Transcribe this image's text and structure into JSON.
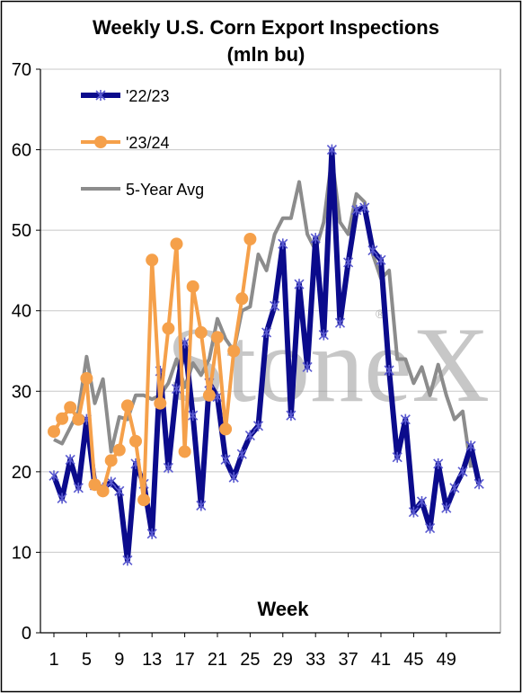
{
  "chart_data": {
    "type": "line",
    "title": "Weekly U.S. Corn Export Inspections",
    "subtitle": "(mln bu)",
    "xlabel": "Week",
    "ylabel": "",
    "xlim": [
      1,
      53
    ],
    "ylim": [
      0,
      70
    ],
    "yticks": [
      "0",
      "10",
      "20",
      "30",
      "40",
      "50",
      "60",
      "70"
    ],
    "xticks": [
      {
        "week": 1,
        "label": "1"
      },
      {
        "week": 5,
        "label": "5"
      },
      {
        "week": 9,
        "label": "9"
      },
      {
        "week": 13,
        "label": "13"
      },
      {
        "week": 17,
        "label": "17"
      },
      {
        "week": 21,
        "label": "21"
      },
      {
        "week": 25,
        "label": "25"
      },
      {
        "week": 29,
        "label": "29"
      },
      {
        "week": 33,
        "label": "33"
      },
      {
        "week": 37,
        "label": "37"
      },
      {
        "week": 41,
        "label": "41"
      },
      {
        "week": 45,
        "label": "45"
      },
      {
        "week": 49,
        "label": "49"
      }
    ],
    "grid": true,
    "legend_position": "top-left",
    "watermark": "StoneX",
    "series": [
      {
        "name": "'22/23",
        "color": "#0b0b8c",
        "marker": "asterisk",
        "weeks": [
          1,
          2,
          3,
          4,
          5,
          6,
          7,
          8,
          9,
          10,
          11,
          12,
          13,
          14,
          15,
          16,
          17,
          18,
          19,
          20,
          21,
          22,
          23,
          24,
          25,
          26,
          27,
          28,
          29,
          30,
          31,
          32,
          33,
          34,
          35,
          36,
          37,
          38,
          39,
          40,
          41,
          42,
          43,
          44,
          45,
          46,
          47,
          48,
          49,
          50,
          51,
          52,
          53
        ],
        "values": [
          19.5,
          16.7,
          21.5,
          18.0,
          26.5,
          18.3,
          18.0,
          18.7,
          17.6,
          9.0,
          21.0,
          18.5,
          12.3,
          32.5,
          20.5,
          30.3,
          36.0,
          27.0,
          15.8,
          31.0,
          29.3,
          21.5,
          19.3,
          22.2,
          24.5,
          25.7,
          37.3,
          40.6,
          48.3,
          27.0,
          43.3,
          33.0,
          49.0,
          37.0,
          60.0,
          38.5,
          46.0,
          52.5,
          52.8,
          47.5,
          46.3,
          32.6,
          21.8,
          26.5,
          15.0,
          16.3,
          13.0,
          21.0,
          15.5,
          18.0,
          20.0,
          23.2,
          18.5
        ]
      },
      {
        "name": "'23/24",
        "color": "#f5a04a",
        "marker": "circle",
        "weeks": [
          1,
          2,
          3,
          4,
          5,
          6,
          7,
          8,
          9,
          10,
          11,
          12,
          13,
          14,
          15,
          16,
          17,
          18,
          19,
          20,
          21,
          22,
          23,
          24,
          25
        ],
        "values": [
          25.0,
          26.6,
          28.0,
          26.5,
          31.6,
          18.4,
          17.6,
          21.4,
          22.7,
          28.2,
          23.8,
          16.5,
          46.3,
          28.5,
          37.8,
          48.3,
          22.5,
          43.0,
          37.3,
          29.5,
          36.7,
          25.3,
          35.0,
          41.5,
          48.9
        ]
      },
      {
        "name": "5-Year Avg",
        "color": "#8c8c8c",
        "marker": "none",
        "weeks": [
          1,
          2,
          3,
          4,
          5,
          6,
          7,
          8,
          9,
          10,
          11,
          12,
          13,
          14,
          15,
          16,
          17,
          18,
          19,
          20,
          21,
          22,
          23,
          24,
          25,
          26,
          27,
          28,
          29,
          30,
          31,
          32,
          33,
          34,
          35,
          36,
          37,
          38,
          39,
          40,
          41,
          42,
          43,
          44,
          45,
          46,
          47,
          48,
          49,
          50,
          51,
          52
        ],
        "values": [
          24.0,
          23.5,
          25.5,
          27.5,
          34.3,
          28.5,
          31.5,
          22.5,
          26.8,
          26.5,
          29.5,
          29.5,
          29.0,
          29.5,
          31.0,
          34.0,
          30.5,
          33.5,
          32.0,
          34.0,
          39.0,
          36.5,
          35.0,
          40.0,
          40.5,
          47.0,
          45.0,
          49.5,
          51.5,
          51.5,
          56.0,
          49.5,
          47.5,
          51.0,
          59.0,
          51.0,
          49.5,
          54.5,
          53.5,
          47.0,
          44.0,
          45.0,
          34.0,
          34.0,
          31.0,
          33.0,
          29.5,
          33.3,
          29.5,
          26.5,
          27.5,
          20.5
        ]
      }
    ]
  }
}
